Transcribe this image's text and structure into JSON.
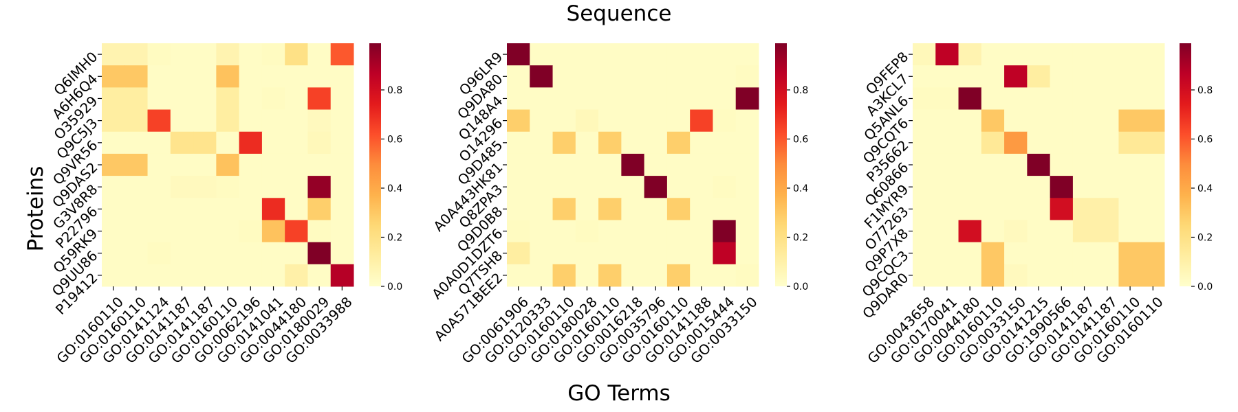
{
  "chart_data": {
    "type": "heatmap",
    "title": "Sequence",
    "xlabel": "GO Terms",
    "ylabel": "Proteins",
    "colormap": [
      "#ffffcc",
      "#ffeda0",
      "#fed976",
      "#feb24c",
      "#fd8d3c",
      "#fc4e2a",
      "#e31a1c",
      "#bd0026",
      "#800026"
    ],
    "vrange": [
      0,
      0.99
    ],
    "colorbar_ticks": [
      "0.0",
      "0.2",
      "0.4",
      "0.6",
      "0.8"
    ],
    "panels": [
      {
        "rows": [
          "Q6IMH0",
          "A6H6Q4",
          "O35929",
          "Q9C5J3",
          "Q9VR56",
          "Q9DAS2",
          "G3V8R8",
          "P22796",
          "Q59RK9",
          "Q9UU86",
          "P19412"
        ],
        "cols": [
          "GO:0160110",
          "GO:0160110",
          "GO:0141124",
          "GO:0141187",
          "GO:0141187",
          "GO:0160110",
          "GO:0062196",
          "GO:0141041",
          "GO:0044180",
          "GO:0180029",
          "GO:0033988"
        ],
        "values": [
          [
            0.08,
            0.08,
            0.03,
            0.02,
            0.02,
            0.08,
            0.02,
            0.03,
            0.2,
            0.02,
            0.6
          ],
          [
            0.3,
            0.3,
            0.02,
            0.02,
            0.02,
            0.32,
            0.02,
            0.02,
            0.02,
            0.02,
            0.02
          ],
          [
            0.12,
            0.12,
            0.02,
            0.02,
            0.02,
            0.12,
            0.02,
            0.03,
            0.02,
            0.65,
            0.02
          ],
          [
            0.12,
            0.12,
            0.65,
            0.02,
            0.02,
            0.12,
            0.02,
            0.02,
            0.02,
            0.04,
            0.02
          ],
          [
            0.02,
            0.02,
            0.02,
            0.18,
            0.18,
            0.02,
            0.7,
            0.02,
            0.02,
            0.05,
            0.02
          ],
          [
            0.3,
            0.3,
            0.02,
            0.02,
            0.02,
            0.32,
            0.02,
            0.02,
            0.02,
            0.02,
            0.02
          ],
          [
            0.02,
            0.02,
            0.02,
            0.04,
            0.04,
            0.03,
            0.02,
            0.02,
            0.02,
            0.95,
            0.02
          ],
          [
            0.02,
            0.02,
            0.02,
            0.02,
            0.02,
            0.02,
            0.02,
            0.7,
            0.02,
            0.28,
            0.02
          ],
          [
            0.02,
            0.02,
            0.02,
            0.02,
            0.02,
            0.02,
            0.03,
            0.32,
            0.65,
            0.03,
            0.02
          ],
          [
            0.02,
            0.02,
            0.03,
            0.02,
            0.02,
            0.02,
            0.02,
            0.02,
            0.02,
            0.99,
            0.02
          ],
          [
            0.02,
            0.02,
            0.02,
            0.02,
            0.02,
            0.02,
            0.02,
            0.02,
            0.1,
            0.02,
            0.88
          ]
        ]
      },
      {
        "rows": [
          "Q96LR9",
          "Q9DA80",
          "Q148A4",
          "O14296",
          "Q9D485",
          "A0A443HK81",
          "Q8ZPA3",
          "Q9D0B8",
          "A0A0D1DZT6",
          "Q7TSH8",
          "A0A571BEE2"
        ],
        "cols": [
          "GO:0061906",
          "GO:0120333",
          "GO:0160110",
          "GO:0180028",
          "GO:0160110",
          "GO:0016218",
          "GO:0035796",
          "GO:0160110",
          "GO:0141188",
          "GO:0015444",
          "GO:0033150"
        ],
        "values": [
          [
            0.99,
            0.02,
            0.02,
            0.02,
            0.02,
            0.02,
            0.02,
            0.02,
            0.02,
            0.02,
            0.02
          ],
          [
            0.02,
            0.99,
            0.02,
            0.02,
            0.02,
            0.02,
            0.02,
            0.02,
            0.02,
            0.02,
            0.03
          ],
          [
            0.02,
            0.02,
            0.02,
            0.02,
            0.02,
            0.02,
            0.02,
            0.02,
            0.02,
            0.02,
            0.99
          ],
          [
            0.28,
            0.02,
            0.02,
            0.05,
            0.02,
            0.02,
            0.02,
            0.02,
            0.65,
            0.03,
            0.02
          ],
          [
            0.02,
            0.02,
            0.28,
            0.02,
            0.28,
            0.02,
            0.02,
            0.28,
            0.02,
            0.02,
            0.02
          ],
          [
            0.02,
            0.02,
            0.02,
            0.02,
            0.02,
            0.99,
            0.02,
            0.02,
            0.02,
            0.02,
            0.02
          ],
          [
            0.02,
            0.02,
            0.02,
            0.02,
            0.02,
            0.02,
            0.99,
            0.02,
            0.02,
            0.03,
            0.02
          ],
          [
            0.02,
            0.02,
            0.28,
            0.02,
            0.28,
            0.02,
            0.02,
            0.28,
            0.02,
            0.02,
            0.02
          ],
          [
            0.03,
            0.02,
            0.02,
            0.03,
            0.02,
            0.02,
            0.02,
            0.02,
            0.02,
            0.99,
            0.02
          ],
          [
            0.12,
            0.02,
            0.02,
            0.02,
            0.02,
            0.02,
            0.02,
            0.02,
            0.02,
            0.86,
            0.02
          ],
          [
            0.02,
            0.02,
            0.28,
            0.02,
            0.28,
            0.02,
            0.02,
            0.28,
            0.02,
            0.02,
            0.03
          ]
        ]
      },
      {
        "rows": [
          "Q9FEP8",
          "A3KCL7",
          "Q5ANL6",
          "Q9CQT6",
          "P35662",
          "Q60866",
          "F1MYR9",
          "O77263",
          "Q9P7X8",
          "Q9CQC3",
          "Q9DAR0"
        ],
        "cols": [
          "GO:0043658",
          "GO:0170041",
          "GO:0044180",
          "GO:0160110",
          "GO:0033150",
          "GO:0141215",
          "GO:1990566",
          "GO:0141187",
          "GO:0141187",
          "GO:0160110",
          "GO:0160110"
        ],
        "values": [
          [
            0.05,
            0.86,
            0.08,
            0.02,
            0.02,
            0.02,
            0.02,
            0.02,
            0.02,
            0.02,
            0.02
          ],
          [
            0.02,
            0.02,
            0.02,
            0.02,
            0.86,
            0.12,
            0.02,
            0.02,
            0.02,
            0.02,
            0.02
          ],
          [
            0.03,
            0.03,
            0.99,
            0.02,
            0.02,
            0.02,
            0.02,
            0.02,
            0.02,
            0.02,
            0.02
          ],
          [
            0.02,
            0.02,
            0.02,
            0.3,
            0.02,
            0.02,
            0.02,
            0.02,
            0.02,
            0.3,
            0.3
          ],
          [
            0.02,
            0.02,
            0.02,
            0.15,
            0.45,
            0.02,
            0.02,
            0.02,
            0.02,
            0.15,
            0.15
          ],
          [
            0.02,
            0.02,
            0.02,
            0.02,
            0.02,
            0.99,
            0.02,
            0.02,
            0.02,
            0.02,
            0.02
          ],
          [
            0.02,
            0.02,
            0.02,
            0.02,
            0.02,
            0.02,
            0.99,
            0.02,
            0.02,
            0.02,
            0.02
          ],
          [
            0.02,
            0.02,
            0.02,
            0.02,
            0.02,
            0.02,
            0.8,
            0.1,
            0.1,
            0.02,
            0.02
          ],
          [
            0.02,
            0.02,
            0.8,
            0.02,
            0.04,
            0.02,
            0.02,
            0.1,
            0.1,
            0.02,
            0.02
          ],
          [
            0.02,
            0.02,
            0.02,
            0.3,
            0.02,
            0.02,
            0.02,
            0.02,
            0.02,
            0.3,
            0.3
          ],
          [
            0.02,
            0.02,
            0.02,
            0.3,
            0.04,
            0.02,
            0.02,
            0.02,
            0.02,
            0.3,
            0.3
          ]
        ]
      }
    ]
  }
}
